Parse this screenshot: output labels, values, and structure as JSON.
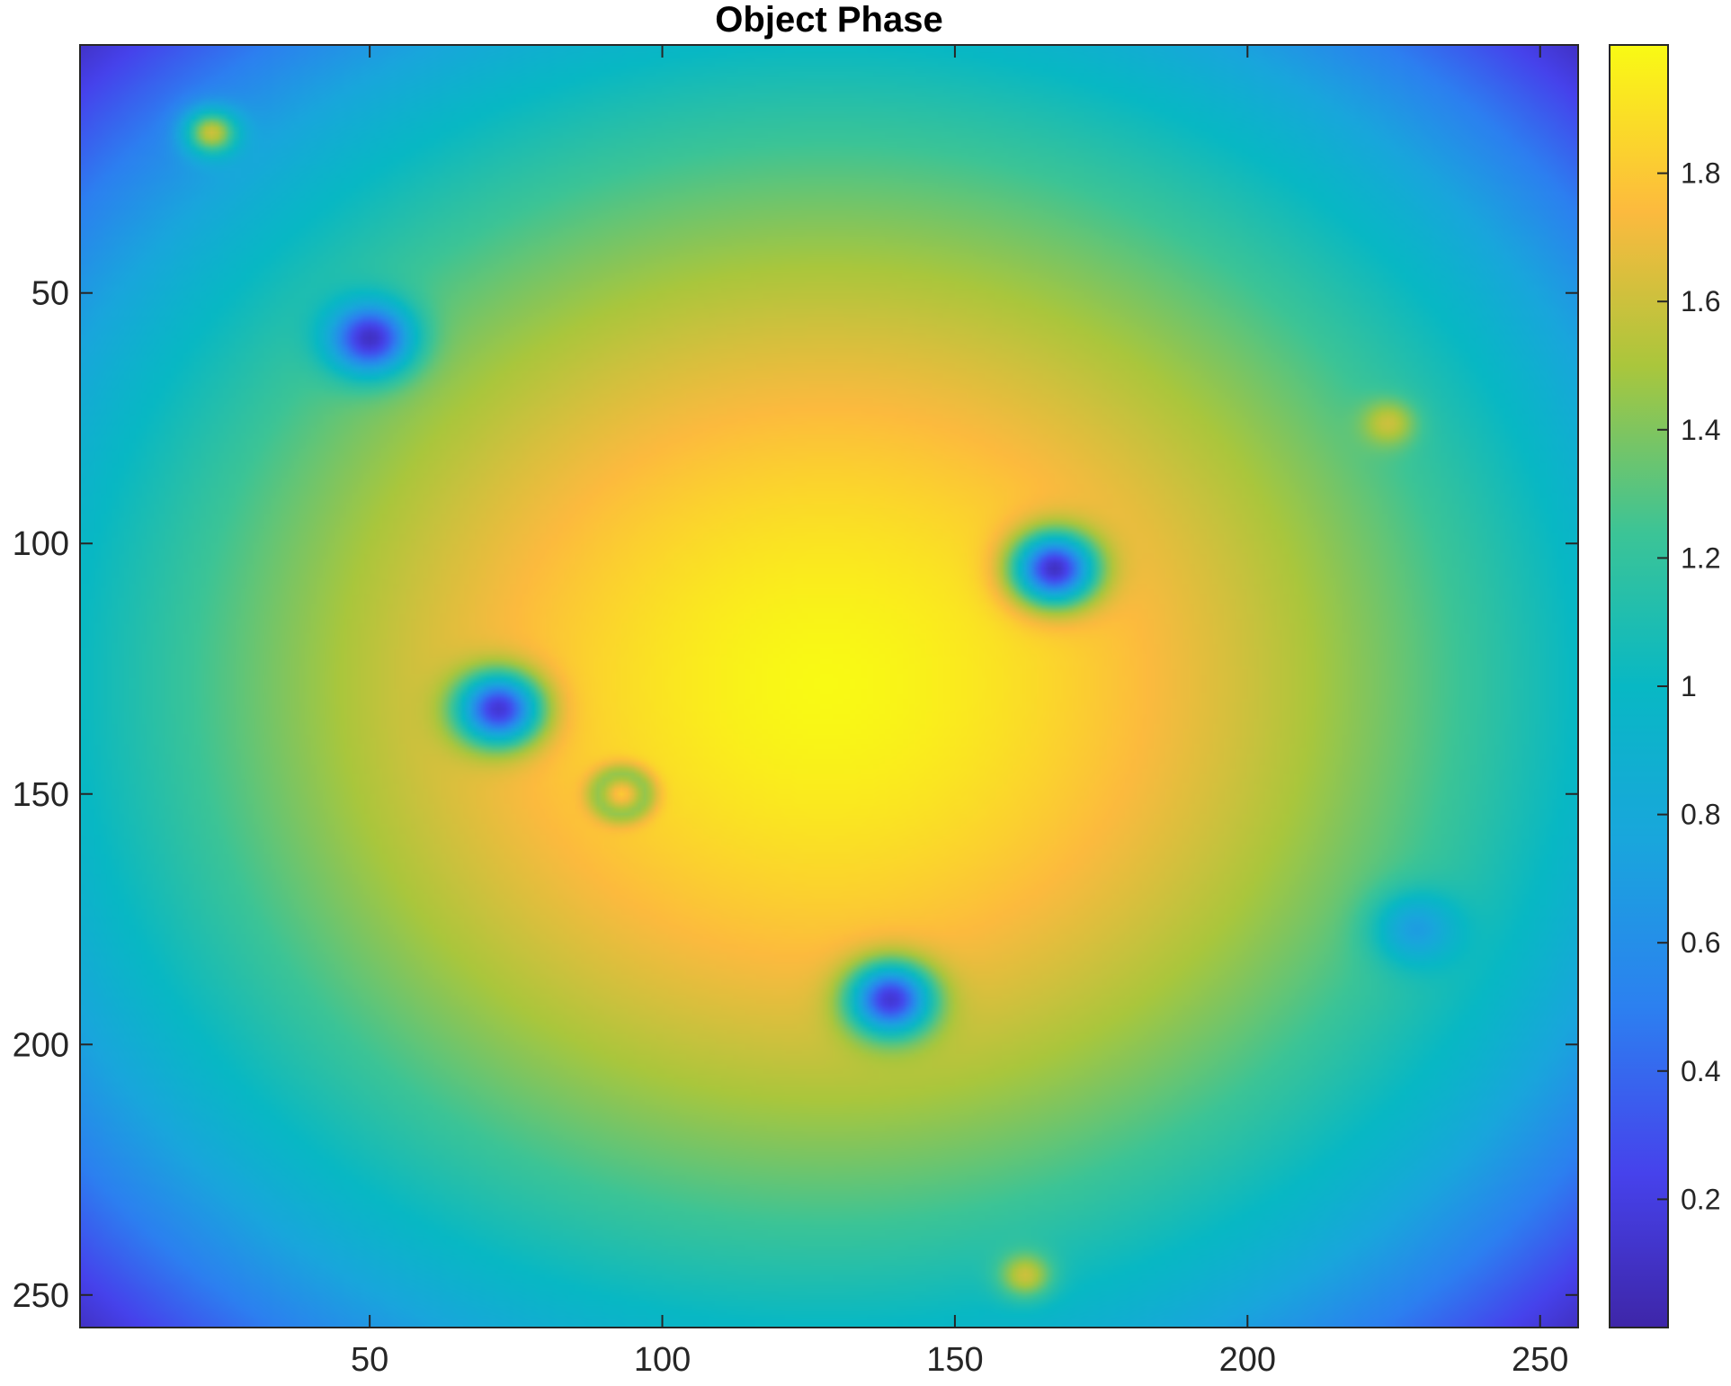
{
  "chart_data": {
    "type": "heatmap",
    "title": "Object Phase",
    "xlabel": "",
    "ylabel": "",
    "x_range": [
      0.5,
      256.5
    ],
    "y_range": [
      0.5,
      256.5
    ],
    "y_direction": "reversed",
    "x_ticks": [
      50,
      100,
      150,
      200,
      250
    ],
    "y_ticks": [
      50,
      100,
      150,
      200,
      250
    ],
    "colorbar": {
      "colormap": "parula",
      "clim": [
        0.0,
        2.0
      ],
      "ticks": [
        0.2,
        0.4,
        0.6,
        0.8,
        1,
        1.2,
        1.4,
        1.6,
        1.8
      ],
      "tick_labels": [
        "0.2",
        "0.4",
        "0.6",
        "0.8",
        "1",
        "1.2",
        "1.4",
        "1.6",
        "1.8"
      ]
    },
    "background": {
      "shape": "radial",
      "center": [
        128,
        128
      ],
      "center_value": 2.0,
      "value_at_radius_128": 1.0,
      "edge_value": 0.1
    },
    "features": [
      {
        "x": 23,
        "y": 18,
        "value": 1.6,
        "kind": "bump"
      },
      {
        "x": 50,
        "y": 59,
        "value": 0.1,
        "kind": "dip"
      },
      {
        "x": 167,
        "y": 105,
        "value": 0.1,
        "kind": "dip"
      },
      {
        "x": 224,
        "y": 76,
        "value": 1.6,
        "kind": "bump"
      },
      {
        "x": 72,
        "y": 133,
        "value": 0.15,
        "kind": "dip"
      },
      {
        "x": 93,
        "y": 150,
        "value": 1.45,
        "kind": "ring"
      },
      {
        "x": 139,
        "y": 191,
        "value": 0.15,
        "kind": "dip"
      },
      {
        "x": 229,
        "y": 177,
        "value": 0.7,
        "kind": "dip"
      },
      {
        "x": 162,
        "y": 246,
        "value": 1.6,
        "kind": "bump"
      }
    ]
  }
}
